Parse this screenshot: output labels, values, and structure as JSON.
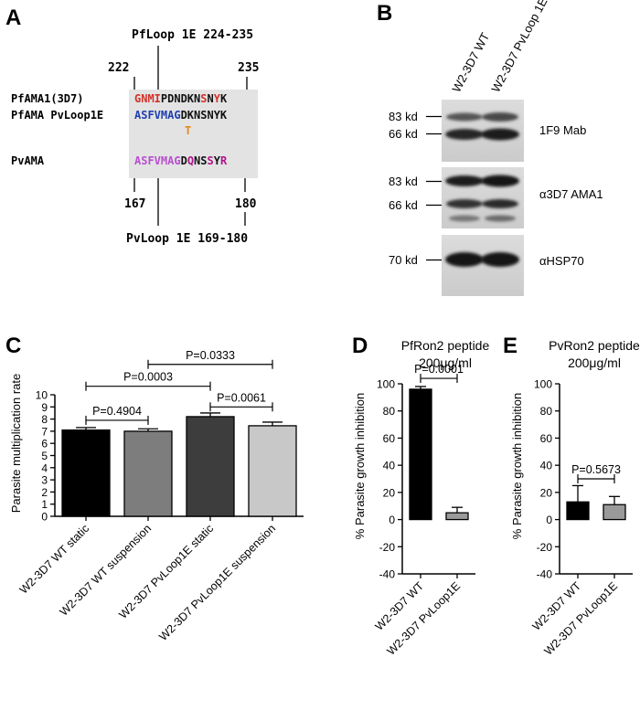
{
  "panels": {
    "A": {
      "letter": "A",
      "pf_loop_label": "PfLoop 1E 224-235",
      "pf_start": "222",
      "pf_end": "235",
      "pv_start": "167",
      "pv_end": "180",
      "pv_loop_label": "PvLoop 1E 169-180",
      "rows": [
        {
          "label": "PfAMA1(3D7)",
          "segments": [
            {
              "text": "GNMI",
              "color": "#d0322a"
            },
            {
              "text": "PDNDKN",
              "color": "#111111"
            },
            {
              "text": "S",
              "color": "#d0322a"
            },
            {
              "text": "N",
              "color": "#111111"
            },
            {
              "text": "Y",
              "color": "#d0322a"
            },
            {
              "text": "K",
              "color": "#111111"
            }
          ]
        },
        {
          "label": "PfAMA PvLoop1E",
          "segments": [
            {
              "text": "ASFVMAG",
              "color": "#1f3fb0"
            },
            {
              "text": "DKNSNYK",
              "color": "#111111"
            }
          ]
        },
        {
          "label": "PvAMA",
          "segments": [
            {
              "text": "ASFVMAG",
              "color": "#b84fd0"
            },
            {
              "text": "D",
              "color": "#111111"
            },
            {
              "text": "Q",
              "color": "#b0148c"
            },
            {
              "text": "NS",
              "color": "#111111"
            },
            {
              "text": "S",
              "color": "#b0148c"
            },
            {
              "text": "Y",
              "color": "#111111"
            },
            {
              "text": "R",
              "color": "#b0148c"
            }
          ]
        }
      ],
      "variant_t": {
        "text": "T",
        "color": "#e08a1e"
      }
    },
    "B": {
      "letter": "B",
      "lanes": [
        "W2-3D7 WT",
        "W2-3D7 PvLoop 1E"
      ],
      "blots": [
        {
          "antibody": "1F9 Mab",
          "markers": [
            "83 kd",
            "66 kd"
          ]
        },
        {
          "antibody": "α3D7 AMA1",
          "markers": [
            "83 kd",
            "66 kd"
          ]
        },
        {
          "antibody": "αHSP70",
          "markers": [
            "70 kd"
          ]
        }
      ]
    },
    "C": {
      "letter": "C",
      "chart_data": {
        "type": "bar",
        "title": "",
        "xlabel": "",
        "ylabel": "Parasite multiplication rate",
        "ylim": [
          0,
          10
        ],
        "yticks": [
          "0",
          "1",
          "2",
          "3",
          "4",
          "5",
          "6",
          "7",
          "8",
          "9",
          "10"
        ],
        "categories": [
          "W2-3D7 WT static",
          "W2-3D7 WT suspension",
          "W2-3D7 PvLoop1E static",
          "W2-3D7 PvLoop1E suspension"
        ],
        "values": [
          7.1,
          7.0,
          8.2,
          7.45
        ],
        "errors": [
          0.2,
          0.2,
          0.3,
          0.3
        ],
        "bar_colors": [
          "#000000",
          "#7d7d7d",
          "#3d3d3d",
          "#c8c8c8"
        ],
        "comparisons": [
          {
            "from": 0,
            "to": 1,
            "label": "P=0.4904",
            "y": 7.9
          },
          {
            "from": 2,
            "to": 3,
            "label": "P=0.0061",
            "y": 9.0
          },
          {
            "from": 0,
            "to": 2,
            "label": "P=0.0003",
            "y": 10.7
          },
          {
            "from": 1,
            "to": 3,
            "label": "P=0.0333",
            "y": 12.5
          }
        ]
      }
    },
    "D": {
      "letter": "D",
      "title_line1": "PfRon2 peptide",
      "title_line2": "200μg/ml",
      "chart_data": {
        "type": "bar",
        "title": "PfRon2 peptide 200μg/ml",
        "xlabel": "",
        "ylabel": "% Parasite growth inhibition",
        "ylim": [
          -40,
          100
        ],
        "yticks": [
          "-40",
          "-20",
          "0",
          "20",
          "40",
          "60",
          "80",
          "100"
        ],
        "categories": [
          "W2-3D7 WT",
          "W2-3D7 PvLoop1E"
        ],
        "values": [
          96,
          5
        ],
        "errors": [
          2,
          4
        ],
        "bar_colors": [
          "#000000",
          "#9a9a9a"
        ],
        "comparisons": [
          {
            "from": 0,
            "to": 1,
            "label": "P=0.0001",
            "y": 104
          }
        ]
      }
    },
    "E": {
      "letter": "E",
      "title_line1": "PvRon2 peptide",
      "title_line2": "200μg/ml",
      "chart_data": {
        "type": "bar",
        "title": "PvRon2 peptide 200μg/ml",
        "xlabel": "",
        "ylabel": "% Parasite growth inhibition",
        "ylim": [
          -40,
          100
        ],
        "yticks": [
          "-40",
          "-20",
          "0",
          "20",
          "40",
          "60",
          "80",
          "100"
        ],
        "categories": [
          "W2-3D7 WT",
          "W2-3D7 PvLoop1E"
        ],
        "values": [
          13,
          11
        ],
        "errors": [
          12,
          6
        ],
        "bar_colors": [
          "#000000",
          "#9a9a9a"
        ],
        "comparisons": [
          {
            "from": 0,
            "to": 1,
            "label": "P=0.5673",
            "y": 30
          }
        ]
      }
    }
  }
}
